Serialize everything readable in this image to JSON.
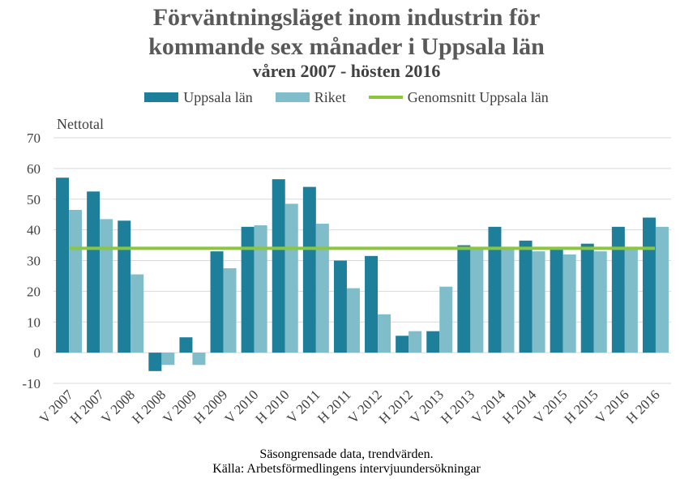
{
  "title_line1": "Förväntningsläget inom industrin för",
  "title_line2": "kommande sex månader i Uppsala län",
  "subtitle": "våren 2007 - hösten 2016",
  "footer_line1": "Säsongrensade data, trendvärden.",
  "footer_line2": "Källa: Arbetsförmedlingens intervjuundersökningar",
  "colors": {
    "uppsala": "#1e7f9a",
    "riket": "#7fbdcb",
    "average": "#8cc63f",
    "grid": "#d9d9d9",
    "axis_text": "#404040"
  },
  "chart_data": {
    "type": "bar",
    "ylabel": "Nettotal",
    "xlabel": "",
    "ylim": [
      -10,
      70
    ],
    "yticks": [
      -10,
      0,
      10,
      20,
      30,
      40,
      50,
      60,
      70
    ],
    "grid": true,
    "legend": "top-center",
    "categories": [
      "V 2007",
      "H 2007",
      "V 2008",
      "H 2008",
      "V 2009",
      "H 2009",
      "V 2010",
      "H 2010",
      "V 2011",
      "H 2011",
      "V 2012",
      "H 2012",
      "V 2013",
      "H 2013",
      "V 2014",
      "H 2014",
      "V 2015",
      "H 2015",
      "V 2016",
      "H 2016"
    ],
    "series": [
      {
        "name": "Uppsala län",
        "values": [
          57,
          52.5,
          43,
          -6,
          5,
          33,
          41,
          56.5,
          54,
          30,
          31.5,
          5.5,
          7,
          35,
          41,
          36.5,
          34,
          35.5,
          41,
          44
        ]
      },
      {
        "name": "Riket",
        "values": [
          46.5,
          43.5,
          25.5,
          -4,
          -4,
          27.5,
          41.5,
          48.5,
          42,
          21,
          12.5,
          7,
          21.5,
          34,
          34.5,
          33,
          32,
          33,
          34.5,
          41
        ]
      }
    ],
    "average": {
      "name": "Genomsnitt Uppsala län",
      "value": 34
    }
  }
}
